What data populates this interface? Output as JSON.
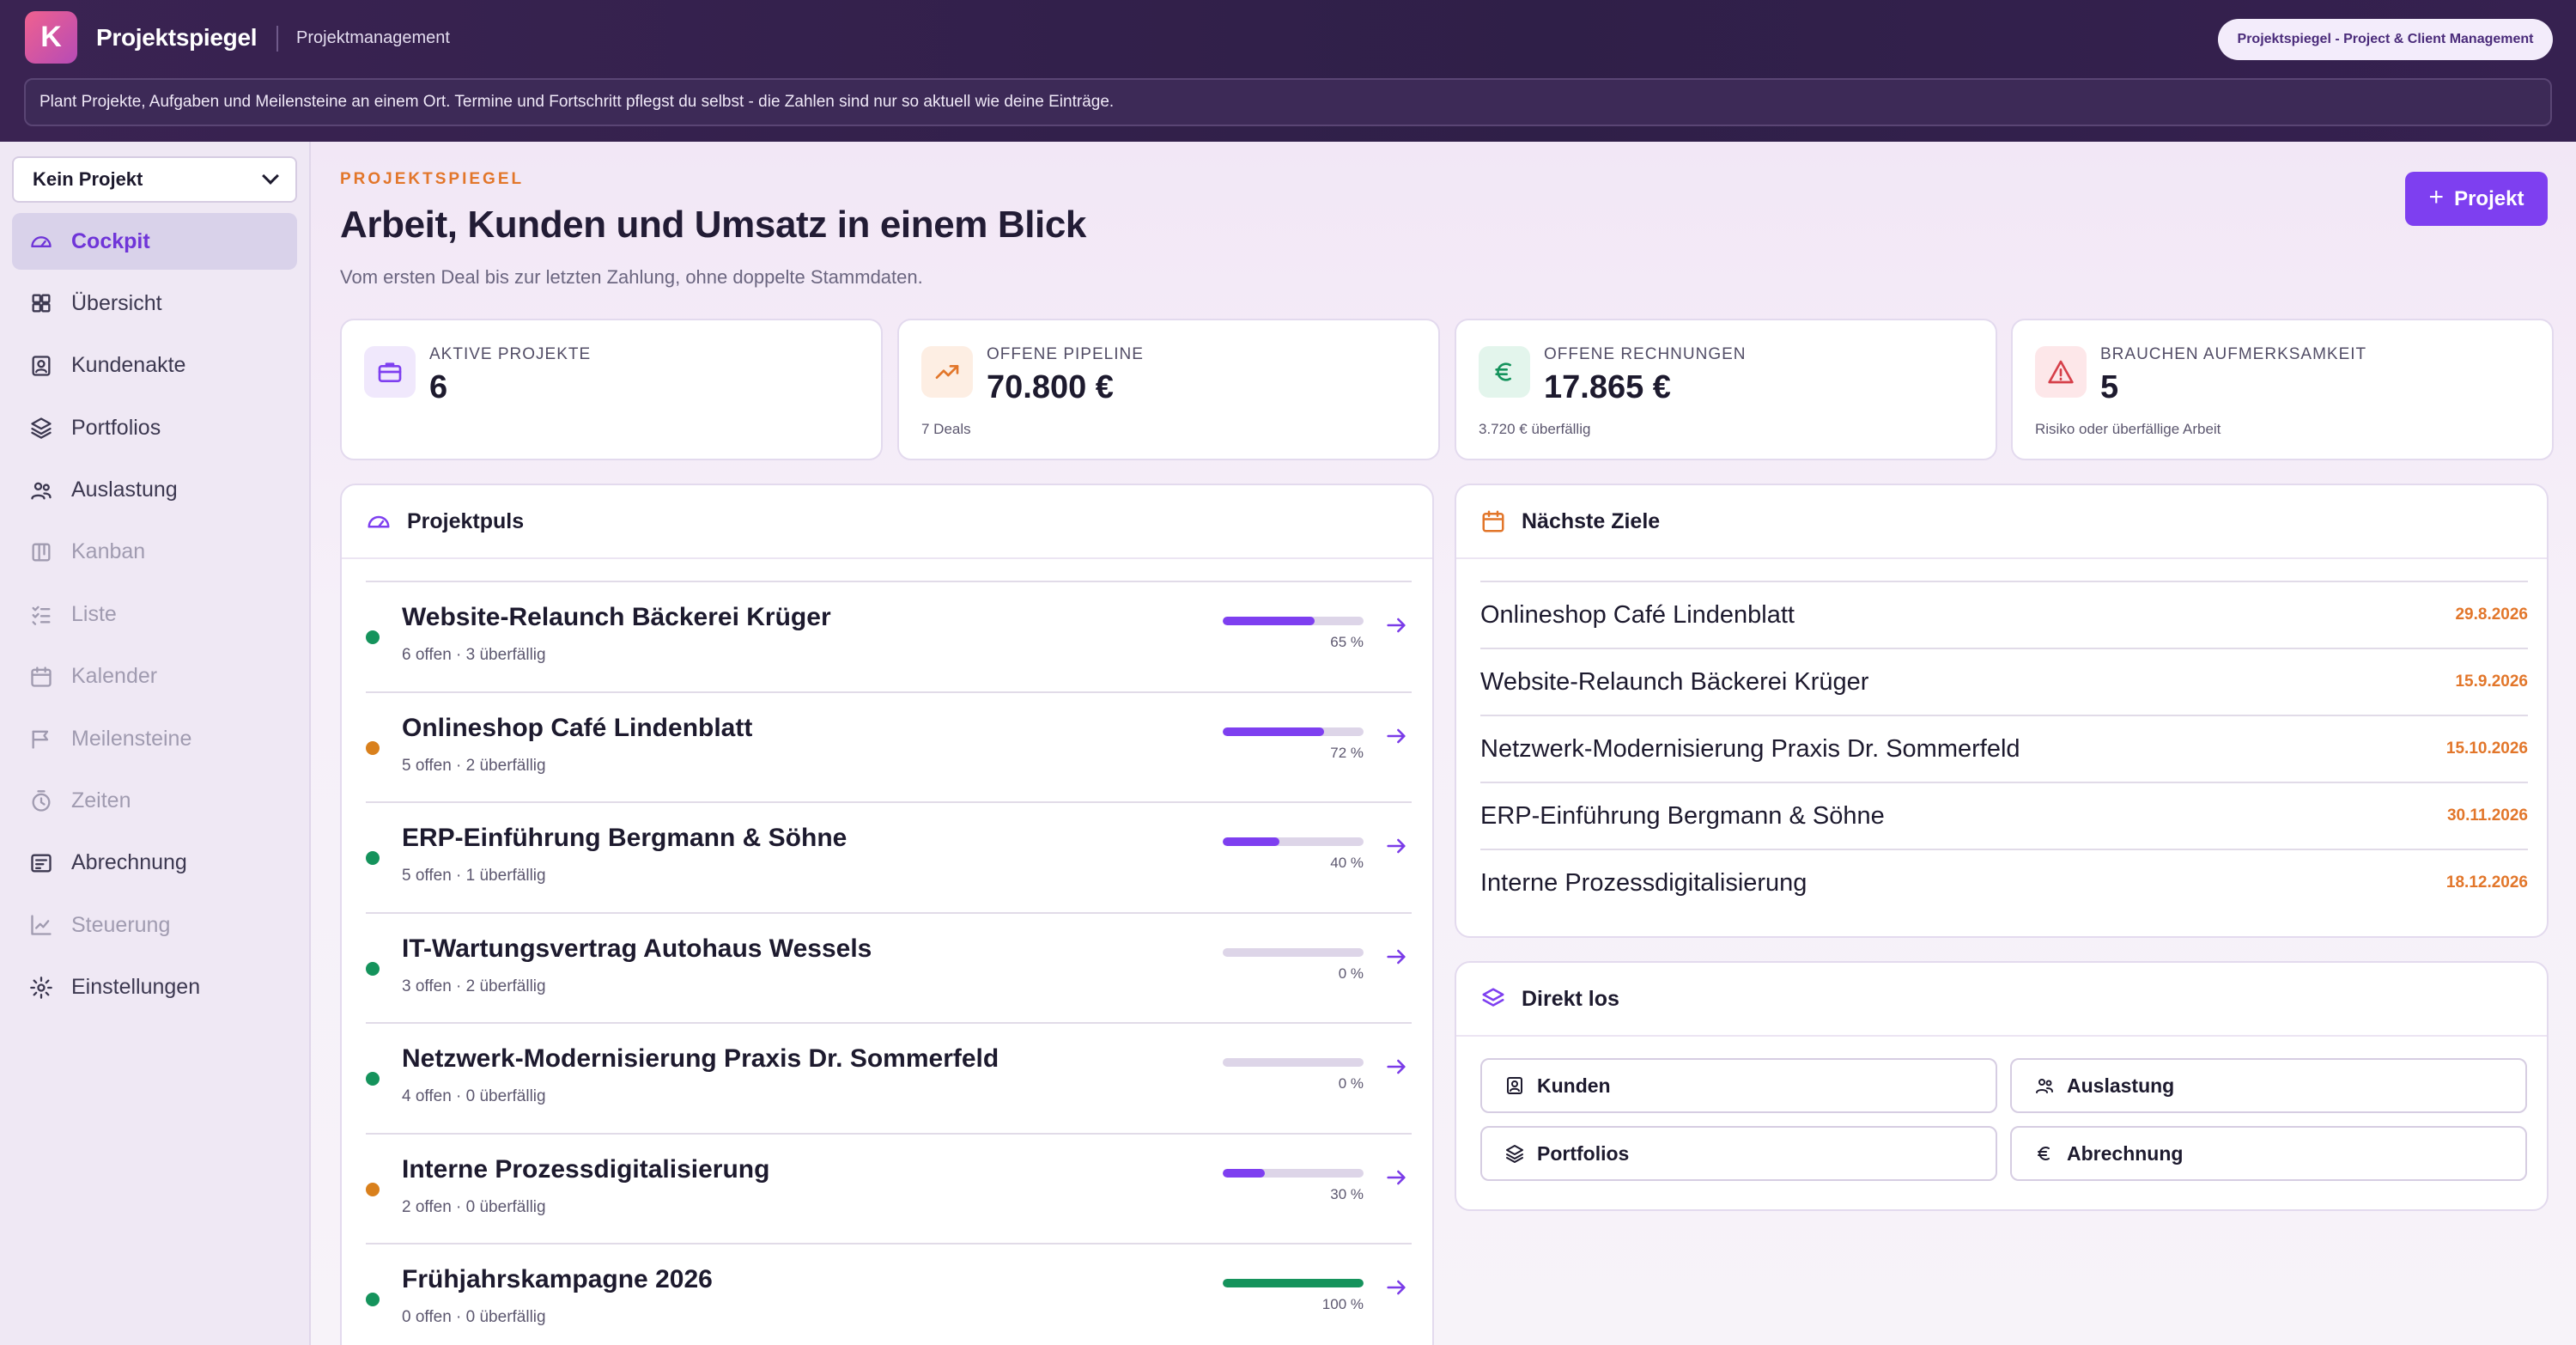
{
  "app": {
    "logo_letter": "K",
    "title": "Projektspiegel",
    "subtitle": "Projektmanagement",
    "badge": "Projektspiegel - Project & Client Management",
    "hint": "Plant Projekte, Aufgaben und Meilensteine an einem Ort. Termine und Fortschritt pflegst du selbst - die Zahlen sind nur so aktuell wie deine Einträge."
  },
  "sidebar": {
    "project_select": "Kein Projekt",
    "items": [
      {
        "label": "Cockpit",
        "icon": "gauge-icon",
        "state": "active"
      },
      {
        "label": "Übersicht",
        "icon": "grid-icon",
        "state": "normal"
      },
      {
        "label": "Kundenakte",
        "icon": "contact-card-icon",
        "state": "normal"
      },
      {
        "label": "Portfolios",
        "icon": "layers-icon",
        "state": "normal"
      },
      {
        "label": "Auslastung",
        "icon": "users-icon",
        "state": "normal"
      },
      {
        "label": "Kanban",
        "icon": "kanban-icon",
        "state": "disabled"
      },
      {
        "label": "Liste",
        "icon": "checklist-icon",
        "state": "disabled"
      },
      {
        "label": "Kalender",
        "icon": "calendar-icon",
        "state": "disabled"
      },
      {
        "label": "Meilensteine",
        "icon": "milestone-icon",
        "state": "disabled"
      },
      {
        "label": "Zeiten",
        "icon": "stopwatch-icon",
        "state": "disabled"
      },
      {
        "label": "Abrechnung",
        "icon": "invoice-icon",
        "state": "normal"
      },
      {
        "label": "Steuerung",
        "icon": "trend-chart-icon",
        "state": "disabled"
      },
      {
        "label": "Einstellungen",
        "icon": "gear-icon",
        "state": "normal"
      }
    ]
  },
  "header": {
    "kicker": "PROJEKTSPIEGEL",
    "title": "Arbeit, Kunden und Umsatz in einem Blick",
    "subtitle": "Vom ersten Deal bis zur letzten Zahlung, ohne doppelte Stammdaten.",
    "add_button": "Projekt"
  },
  "stats": [
    {
      "label": "AKTIVE PROJEKTE",
      "value": "6",
      "note": "",
      "icon": "briefcase-icon",
      "color": "#7e3ff0",
      "bg": "#f0e8fc"
    },
    {
      "label": "OFFENE PIPELINE",
      "value": "70.800 €",
      "note": "7 Deals",
      "icon": "trending-up-icon",
      "color": "#e2762a",
      "bg": "#fdeee3"
    },
    {
      "label": "OFFENE RECHNUNGEN",
      "value": "17.865 €",
      "note": "3.720 € überfällig",
      "icon": "euro-icon",
      "color": "#15935c",
      "bg": "#e3f5ec"
    },
    {
      "label": "BRAUCHEN AUFMERKSAMKEIT",
      "value": "5",
      "note": "Risiko oder überfällige Arbeit",
      "icon": "warning-icon",
      "color": "#d6404a",
      "bg": "#fde7e9"
    }
  ],
  "pulse": {
    "title": "Projektpuls",
    "rows": [
      {
        "name": "Website-Relaunch Bäckerei Krüger",
        "meta": "6 offen · 3 überfällig",
        "progress": 65,
        "pct_label": "65 %",
        "status": "ok"
      },
      {
        "name": "Onlineshop Café Lindenblatt",
        "meta": "5 offen · 2 überfällig",
        "progress": 72,
        "pct_label": "72 %",
        "status": "warn"
      },
      {
        "name": "ERP-Einführung Bergmann & Söhne",
        "meta": "5 offen · 1 überfällig",
        "progress": 40,
        "pct_label": "40 %",
        "status": "ok"
      },
      {
        "name": "IT-Wartungsvertrag Autohaus Wessels",
        "meta": "3 offen · 2 überfällig",
        "progress": 0,
        "pct_label": "0 %",
        "status": "ok"
      },
      {
        "name": "Netzwerk-Modernisierung Praxis Dr. Sommerfeld",
        "meta": "4 offen · 0 überfällig",
        "progress": 0,
        "pct_label": "0 %",
        "status": "ok"
      },
      {
        "name": "Interne Prozessdigitalisierung",
        "meta": "2 offen · 0 überfällig",
        "progress": 30,
        "pct_label": "30 %",
        "status": "warn"
      },
      {
        "name": "Frühjahrskampagne 2026",
        "meta": "0 offen · 0 überfällig",
        "progress": 100,
        "pct_label": "100 %",
        "status": "ok"
      }
    ]
  },
  "goals": {
    "title": "Nächste Ziele",
    "rows": [
      {
        "name": "Onlineshop Café Lindenblatt",
        "date": "29.8.2026"
      },
      {
        "name": "Website-Relaunch Bäckerei Krüger",
        "date": "15.9.2026"
      },
      {
        "name": "Netzwerk-Modernisierung Praxis Dr. Sommerfeld",
        "date": "15.10.2026"
      },
      {
        "name": "ERP-Einführung Bergmann & Söhne",
        "date": "30.11.2026"
      },
      {
        "name": "Interne Prozessdigitalisierung",
        "date": "18.12.2026"
      }
    ]
  },
  "quick": {
    "title": "Direkt los",
    "buttons": [
      {
        "label": "Kunden",
        "icon": "contact-card-icon"
      },
      {
        "label": "Auslastung",
        "icon": "users-icon"
      },
      {
        "label": "Portfolios",
        "icon": "layers-icon"
      },
      {
        "label": "Abrechnung",
        "icon": "euro-icon"
      }
    ]
  },
  "colors": {
    "accent": "#7e3ff0",
    "status_ok": "#15935c",
    "status_warn": "#d9801c",
    "progress_complete": "#15935c"
  }
}
